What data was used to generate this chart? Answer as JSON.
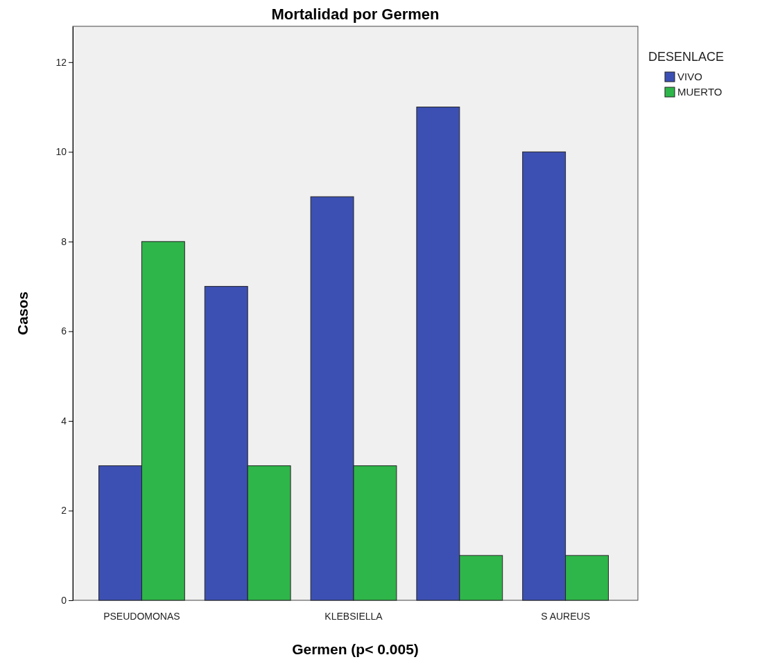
{
  "chart_data": {
    "type": "bar",
    "title": "Mortalidad por Germen",
    "xlabel": "Germen (p< 0.005)",
    "ylabel": "Casos",
    "legend_title": "DESENLACE",
    "legend": "top right",
    "categories": [
      "PSEUDOMONAS",
      null,
      "KLEBSIELLA",
      null,
      "S AUREUS"
    ],
    "series": [
      {
        "name": "VIVO",
        "color": "#3c50b4",
        "values": [
          3,
          7,
          9,
          11,
          10
        ]
      },
      {
        "name": "MUERTO",
        "color": "#2fb64a",
        "values": [
          8,
          3,
          3,
          1,
          1
        ]
      }
    ],
    "ylim": [
      0,
      12.8
    ],
    "yticks": [
      0,
      2,
      4,
      6,
      8,
      10,
      12
    ]
  }
}
